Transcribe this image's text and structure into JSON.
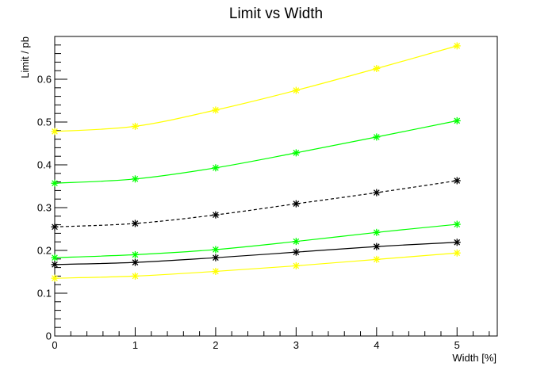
{
  "chart_data": {
    "type": "line",
    "title": "Limit vs Width",
    "xlabel": "Width [%]",
    "ylabel": "Limit / pb",
    "xlim": [
      0,
      5.5
    ],
    "ylim": [
      0,
      0.7
    ],
    "x_ticks": [
      0,
      1,
      2,
      3,
      4,
      5
    ],
    "y_ticks": [
      0,
      0.1,
      0.2,
      0.3,
      0.4,
      0.5,
      0.6
    ],
    "x_tick_labels": [
      "0",
      "1",
      "2",
      "3",
      "4",
      "5"
    ],
    "y_tick_labels": [
      "0",
      "0.1",
      "0.2",
      "0.3",
      "0.4",
      "0.5",
      "0.6"
    ],
    "grid": false,
    "legend": "none",
    "marker": "star",
    "x": [
      0,
      1,
      2,
      3,
      4,
      5
    ],
    "series": [
      {
        "values": [
          0.478,
          0.49,
          0.528,
          0.574,
          0.625,
          0.678
        ],
        "color": "#ffff00",
        "style": "solid"
      },
      {
        "values": [
          0.357,
          0.367,
          0.393,
          0.428,
          0.465,
          0.503
        ],
        "color": "#00ff00",
        "style": "solid"
      },
      {
        "values": [
          0.255,
          0.263,
          0.283,
          0.309,
          0.335,
          0.363
        ],
        "color": "#000000",
        "style": "dashed"
      },
      {
        "values": [
          0.183,
          0.19,
          0.202,
          0.221,
          0.242,
          0.261
        ],
        "color": "#00ff00",
        "style": "solid"
      },
      {
        "values": [
          0.167,
          0.172,
          0.183,
          0.196,
          0.209,
          0.219
        ],
        "color": "#000000",
        "style": "solid"
      },
      {
        "values": [
          0.135,
          0.14,
          0.151,
          0.164,
          0.179,
          0.194
        ],
        "color": "#ffff00",
        "style": "solid"
      }
    ]
  }
}
